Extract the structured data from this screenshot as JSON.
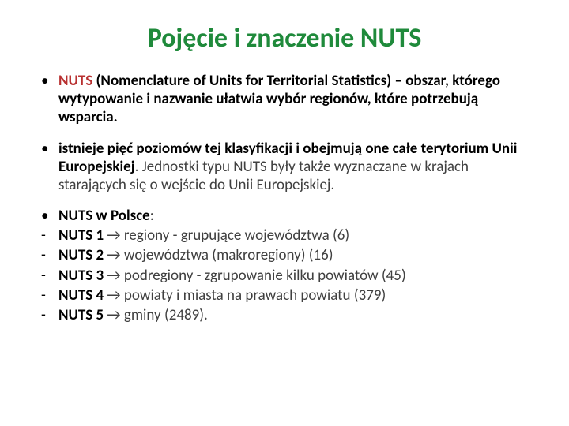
{
  "colors": {
    "title": "#1f8a3b",
    "accent": "#b83030",
    "body": "#404040",
    "bold": "#000000",
    "background": "#ffffff"
  },
  "typography": {
    "title_fontsize": 34,
    "body_fontsize": 19,
    "font_family": "Calibri"
  },
  "title": "Pojęcie i znaczenie NUTS",
  "items": [
    {
      "marker": "bullet",
      "accent": "NUTS",
      "bold_after_accent": " (Nomenclature of Units for Territorial Statistics) – obszar, którego wytypowanie i nazwanie ułatwia wybór regionów, które potrzebują wsparcia.",
      "rest": ""
    },
    {
      "marker": "bullet",
      "bold": "istnieje pięć poziomów tej klasyfikacji i obejmują one całe terytorium Unii Europejskiej",
      "rest": ". Jednostki typu NUTS były także wyznaczane w krajach starających się o wejście do Unii Europejskiej."
    },
    {
      "marker": "bullet",
      "bold": "NUTS w Polsce",
      "rest": ":",
      "tight": true
    },
    {
      "marker": "dash",
      "bold": "NUTS 1",
      "rest": " → regiony - grupujące województwa (6)",
      "tight": true
    },
    {
      "marker": "dash",
      "bold": "NUTS 2",
      "rest": " → województwa (makroregiony) (16)",
      "tight": true
    },
    {
      "marker": "dash",
      "bold": "NUTS 3",
      "rest": " → podregiony - zgrupowanie kilku powiatów (45)",
      "tight": true
    },
    {
      "marker": "dash",
      "bold": "NUTS 4",
      "rest": " → powiaty i miasta na prawach powiatu (379)",
      "tight": true
    },
    {
      "marker": "dash",
      "bold": "NUTS 5",
      "rest": " → gminy (2489).",
      "tight": true
    }
  ]
}
